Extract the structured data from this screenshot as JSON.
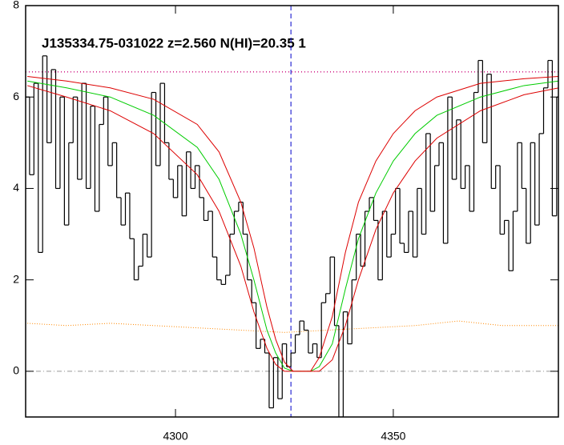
{
  "chart_data": {
    "type": "line",
    "title": "J135334.75-031022 z=2.560 N(HI)=20.35 1",
    "xlim": [
      4265.6,
      4387.9
    ],
    "ylim": [
      -1,
      8
    ],
    "xticks": [
      4300,
      4350
    ],
    "yticks": [
      0,
      2,
      4,
      6,
      8
    ],
    "continuum": 6.55,
    "continuum_color": "#cc0077",
    "center": 4326.5,
    "center_color": "#0000cc",
    "zero_level": 0,
    "zero_color": "#999999",
    "spectrum": {
      "color": "#000000",
      "x": [
        4266,
        4267,
        4268,
        4269,
        4270,
        4271,
        4272,
        4273,
        4274,
        4275,
        4276,
        4277,
        4278,
        4279,
        4280,
        4281,
        4282,
        4283,
        4284,
        4285,
        4286,
        4287,
        4288,
        4289,
        4290,
        4291,
        4292,
        4293,
        4294,
        4295,
        4296,
        4297,
        4298,
        4299,
        4300,
        4301,
        4302,
        4303,
        4304,
        4305,
        4306,
        4307,
        4308,
        4309,
        4310,
        4311,
        4312,
        4313,
        4314,
        4315,
        4316,
        4317,
        4318,
        4319,
        4320,
        4321,
        4322,
        4323,
        4324,
        4325,
        4326,
        4327,
        4328,
        4329,
        4330,
        4331,
        4332,
        4333,
        4334,
        4335,
        4336,
        4337,
        4338,
        4339,
        4340,
        4341,
        4342,
        4343,
        4344,
        4345,
        4346,
        4347,
        4348,
        4349,
        4350,
        4351,
        4352,
        4353,
        4354,
        4355,
        4356,
        4357,
        4358,
        4359,
        4360,
        4361,
        4362,
        4363,
        4364,
        4365,
        4366,
        4367,
        4368,
        4369,
        4370,
        4371,
        4372,
        4373,
        4374,
        4375,
        4376,
        4377,
        4378,
        4379,
        4380,
        4381,
        4382,
        4383,
        4384,
        4385,
        4386,
        4387,
        4388
      ],
      "values": [
        6.0,
        4.3,
        6.3,
        2.6,
        6.9,
        5.0,
        6.6,
        4.0,
        6.0,
        3.2,
        5.0,
        6.0,
        4.2,
        6.3,
        4.0,
        5.8,
        3.5,
        5.4,
        6.0,
        4.5,
        5.0,
        3.8,
        3.2,
        3.9,
        2.9,
        2.0,
        2.3,
        3.0,
        2.5,
        6.1,
        4.5,
        6.3,
        5.0,
        4.2,
        3.8,
        4.5,
        3.4,
        4.8,
        4.0,
        4.5,
        3.8,
        3.3,
        3.5,
        2.5,
        2.0,
        1.9,
        2.1,
        3.0,
        3.5,
        3.7,
        3.0,
        2.0,
        1.5,
        0.5,
        0.7,
        0.4,
        -0.8,
        0.3,
        -0.6,
        0.6,
        0.1,
        0.4,
        0.8,
        1.1,
        0.9,
        0.4,
        0.6,
        0.3,
        1.5,
        1.7,
        2.5,
        1.0,
        -1.0,
        1.3,
        0.6,
        2.0,
        3.0,
        2.3,
        3.5,
        3.8,
        3.3,
        2.0,
        3.5,
        2.5,
        3.0,
        4.0,
        2.8,
        2.6,
        3.5,
        2.5,
        4.0,
        3.0,
        5.2,
        3.5,
        4.5,
        5.0,
        2.8,
        6.0,
        4.2,
        5.5,
        4.0,
        4.5,
        3.5,
        6.1,
        6.8,
        5.0,
        6.5,
        4.0,
        4.5,
        3.0,
        3.3,
        2.2,
        3.5,
        5.0,
        4.0,
        2.8,
        5.0,
        3.2,
        5.2,
        6.2,
        6.8,
        3.4,
        6.0
      ]
    },
    "error": {
      "color": "#ff8800",
      "x": [
        4266,
        4275,
        4285,
        4295,
        4305,
        4315,
        4325,
        4335,
        4345,
        4355,
        4365,
        4375,
        4388
      ],
      "values": [
        1.05,
        1.0,
        1.05,
        1.0,
        0.95,
        0.9,
        0.85,
        0.9,
        0.95,
        1.0,
        1.1,
        1.0,
        1.0
      ]
    },
    "models": {
      "x": [
        4266,
        4275,
        4285,
        4295,
        4305,
        4310,
        4315,
        4318,
        4321,
        4323,
        4325,
        4327,
        4329,
        4331,
        4333,
        4336,
        4339,
        4342,
        4346,
        4350,
        4355,
        4360,
        4370,
        4380,
        4388
      ],
      "series": [
        {
          "color": "#00cc00",
          "values": [
            6.35,
            6.2,
            6.0,
            5.6,
            4.9,
            4.2,
            3.0,
            2.0,
            0.9,
            0.4,
            0.07,
            0,
            0,
            0,
            0.1,
            0.6,
            1.8,
            2.9,
            3.9,
            4.6,
            5.2,
            5.6,
            6.0,
            6.25,
            6.35
          ]
        },
        {
          "color": "#dd0000",
          "values": [
            6.25,
            6.0,
            5.7,
            5.2,
            4.3,
            3.5,
            2.3,
            1.3,
            0.5,
            0.15,
            0,
            0,
            0,
            0,
            0,
            0.25,
            1.0,
            2.0,
            3.1,
            3.9,
            4.6,
            5.1,
            5.7,
            6.05,
            6.2
          ]
        },
        {
          "color": "#dd0000",
          "values": [
            6.45,
            6.35,
            6.2,
            5.95,
            5.4,
            4.8,
            3.7,
            2.7,
            1.4,
            0.7,
            0.2,
            0,
            0,
            0,
            0.3,
            1.2,
            2.6,
            3.7,
            4.6,
            5.2,
            5.7,
            6.0,
            6.3,
            6.4,
            6.45
          ]
        }
      ]
    }
  }
}
